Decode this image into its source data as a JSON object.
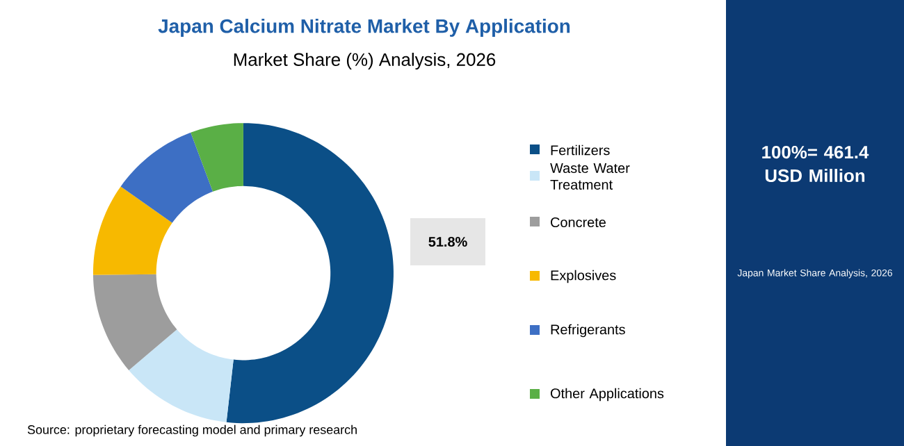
{
  "chart_data": {
    "type": "donut",
    "title": "Japan Calcium Nitrate Market By Application",
    "subtitle": "Market Share (%) Analysis, 2026",
    "categories": [
      "Fertilizers",
      "Waste Water Treatment",
      "Concrete",
      "Explosives",
      "Refrigerants",
      "Other Applications"
    ],
    "values": [
      51.8,
      12,
      11,
      10,
      9.5,
      5.7
    ],
    "colors": [
      "#0b4f87",
      "#c9e6f7",
      "#9d9d9d",
      "#f7b900",
      "#3d6fc4",
      "#5aaf46"
    ],
    "value_labels": [
      "51.8%",
      null,
      null,
      null,
      null,
      null
    ],
    "legend": "right",
    "annotations": [
      "Source: proprietary forecasting model and primary research",
      "100%= 461.4 USD Million",
      "Japan Market Share Analysis, 2026"
    ]
  }
}
